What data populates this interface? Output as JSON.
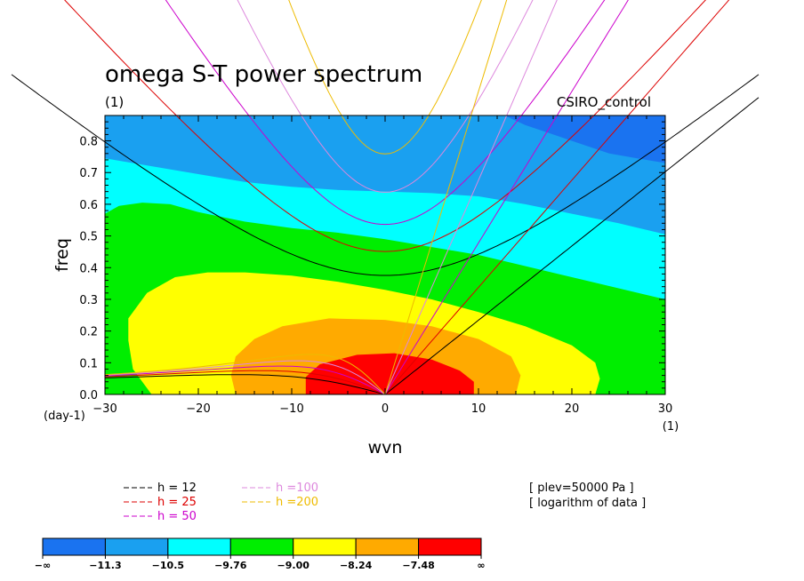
{
  "chart_data": {
    "type": "contour",
    "title": "omega S-T power spectrum",
    "subtitle_left": "(1)",
    "subtitle_right": "CSIRO_control",
    "xlabel": "wvn",
    "ylabel": "freq",
    "x_unit_label": "(1)",
    "y_unit_label": "(day-1)",
    "xlim": [
      -30,
      30
    ],
    "ylim": [
      0.0,
      0.88
    ],
    "x_ticks": [
      -30,
      -20,
      -10,
      0,
      10,
      20,
      30
    ],
    "x_tick_labels": [
      "−30",
      "−20",
      "−10",
      "0",
      "10",
      "20",
      "30"
    ],
    "y_ticks": [
      0.0,
      0.1,
      0.2,
      0.3,
      0.4,
      0.5,
      0.6,
      0.7,
      0.8
    ],
    "y_tick_labels": [
      "0.0",
      "0.1",
      "0.2",
      "0.3",
      "0.4",
      "0.5",
      "0.6",
      "0.7",
      "0.8"
    ],
    "levels": {
      "labels": [
        "−∞",
        "−11.3",
        "−10.5",
        "−9.76",
        "−9.00",
        "−8.24",
        "−7.48",
        "∞"
      ],
      "colors": [
        "#1a73f0",
        "#1aa0f0",
        "#00ffff",
        "#00ee00",
        "#ffff00",
        "#ffaa00",
        "#ff0000"
      ]
    },
    "filled_regions": [
      {
        "level": 1,
        "color": "#1aa0f0",
        "boundary": [
          [
            -30,
            0.88
          ],
          [
            30,
            0.88
          ],
          [
            30,
            0.0
          ],
          [
            -30,
            0.0
          ]
        ]
      },
      {
        "level": 0,
        "color": "#1a73f0",
        "boundary": [
          [
            12.8,
            0.88
          ],
          [
            15,
            0.85
          ],
          [
            18,
            0.82
          ],
          [
            21,
            0.79
          ],
          [
            24,
            0.76
          ],
          [
            27,
            0.745
          ],
          [
            30,
            0.73
          ],
          [
            30,
            0.88
          ]
        ]
      },
      {
        "level": 2,
        "color": "#00ffff",
        "boundary": [
          [
            -30,
            0.745
          ],
          [
            -25,
            0.72
          ],
          [
            -20,
            0.695
          ],
          [
            -15,
            0.67
          ],
          [
            -10,
            0.655
          ],
          [
            -5,
            0.645
          ],
          [
            0,
            0.64
          ],
          [
            5,
            0.635
          ],
          [
            10,
            0.625
          ],
          [
            15,
            0.6
          ],
          [
            20,
            0.57
          ],
          [
            25,
            0.54
          ],
          [
            30,
            0.505
          ],
          [
            30,
            0.0
          ],
          [
            -30,
            0.0
          ]
        ]
      },
      {
        "level": 3,
        "color": "#00ee00",
        "boundary": [
          [
            -30,
            0.57
          ],
          [
            -28.5,
            0.595
          ],
          [
            -26,
            0.605
          ],
          [
            -23,
            0.6
          ],
          [
            -20,
            0.575
          ],
          [
            -15,
            0.545
          ],
          [
            -10,
            0.525
          ],
          [
            -5,
            0.51
          ],
          [
            0,
            0.49
          ],
          [
            5,
            0.465
          ],
          [
            10,
            0.44
          ],
          [
            15,
            0.405
          ],
          [
            20,
            0.37
          ],
          [
            25,
            0.335
          ],
          [
            30,
            0.3
          ],
          [
            30,
            0.0
          ],
          [
            -30,
            0.0
          ]
        ]
      },
      {
        "level": 4,
        "color": "#ffff00",
        "boundary": [
          [
            -25,
            0.0
          ],
          [
            -27,
            0.08
          ],
          [
            -27.5,
            0.17
          ],
          [
            -27.5,
            0.24
          ],
          [
            -25.5,
            0.32
          ],
          [
            -22.5,
            0.37
          ],
          [
            -19,
            0.385
          ],
          [
            -15,
            0.385
          ],
          [
            -10,
            0.375
          ],
          [
            -5,
            0.355
          ],
          [
            0,
            0.33
          ],
          [
            5,
            0.3
          ],
          [
            10,
            0.26
          ],
          [
            15,
            0.215
          ],
          [
            20,
            0.155
          ],
          [
            22.5,
            0.1
          ],
          [
            23,
            0.05
          ],
          [
            22.5,
            0.0
          ]
        ]
      },
      {
        "level": 5,
        "color": "#ffaa00",
        "boundary": [
          [
            -16,
            0.0
          ],
          [
            -16.5,
            0.06
          ],
          [
            -16,
            0.12
          ],
          [
            -14,
            0.175
          ],
          [
            -11,
            0.215
          ],
          [
            -6,
            0.24
          ],
          [
            0,
            0.235
          ],
          [
            5,
            0.215
          ],
          [
            10,
            0.175
          ],
          [
            13.5,
            0.12
          ],
          [
            14.5,
            0.06
          ],
          [
            14,
            0.0
          ]
        ]
      },
      {
        "level": 6,
        "color": "#ff0000",
        "boundary": [
          [
            -8.5,
            0.0
          ],
          [
            -8.5,
            0.055
          ],
          [
            -7,
            0.095
          ],
          [
            -3,
            0.125
          ],
          [
            1,
            0.13
          ],
          [
            5,
            0.11
          ],
          [
            8,
            0.075
          ],
          [
            9.5,
            0.04
          ],
          [
            9.5,
            0.0
          ]
        ]
      }
    ],
    "dispersion_series": [
      {
        "name": "h = 12",
        "color": "#000000",
        "equivalent_depth": 12
      },
      {
        "name": "h = 25",
        "color": "#dd0000",
        "equivalent_depth": 25
      },
      {
        "name": "h = 50",
        "color": "#cc00cc",
        "equivalent_depth": 50
      },
      {
        "name": "h =100",
        "color": "#dd88dd",
        "equivalent_depth": 100
      },
      {
        "name": "h =200",
        "color": "#eebb00",
        "equivalent_depth": 200
      }
    ],
    "annotation_lines": [
      "[ plev=50000 Pa ]",
      "[ logarithm of data ]"
    ]
  }
}
